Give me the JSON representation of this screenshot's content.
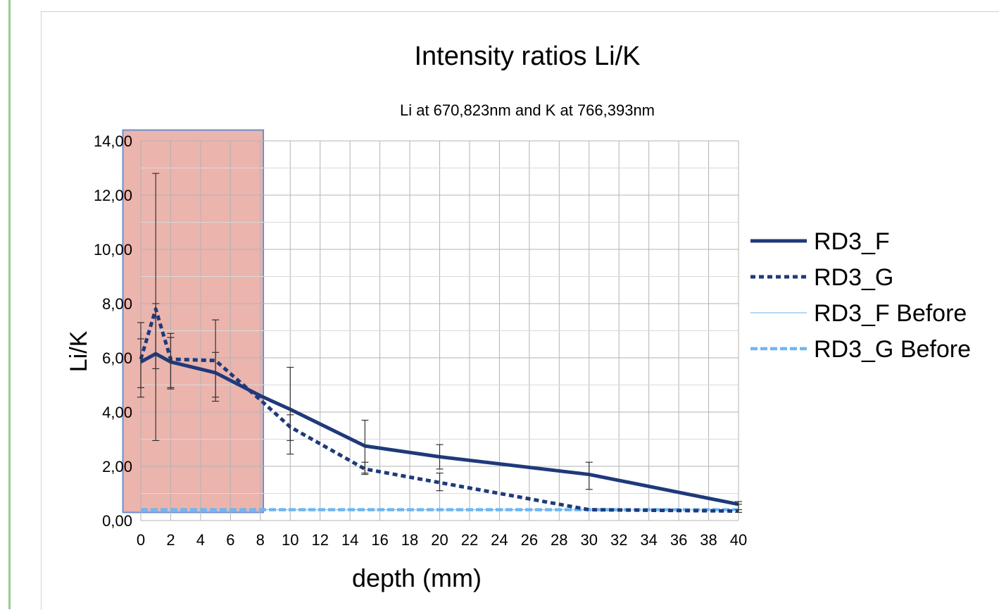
{
  "colors": {
    "accent_border": "#8fd08f",
    "rd3_f": "#1f3a7a",
    "rd3_g": "#1f3a7a",
    "rd3_f_before": "#9ec9f0",
    "rd3_g_before": "#6fb6f2",
    "highlight_fill": "#e8a79f",
    "highlight_border": "#6b8fd0",
    "grid": "#b3b3b3"
  },
  "chart_data": {
    "type": "line",
    "title": "Intensity ratios Li/K",
    "subtitle": "Li at 670,823nm and K at 766,393nm",
    "xlabel": "depth (mm)",
    "ylabel": "Li/K",
    "xlim": [
      0,
      40
    ],
    "ylim": [
      0,
      14
    ],
    "xticks": [
      0,
      2,
      4,
      6,
      8,
      10,
      12,
      14,
      16,
      18,
      20,
      22,
      24,
      26,
      28,
      30,
      32,
      34,
      36,
      38,
      40
    ],
    "yticks": [
      0,
      2,
      4,
      6,
      8,
      10,
      12,
      14
    ],
    "xtick_labels": [
      "0",
      "2",
      "4",
      "6",
      "8",
      "10",
      "12",
      "14",
      "16",
      "18",
      "20",
      "22",
      "24",
      "26",
      "28",
      "30",
      "32",
      "34",
      "36",
      "38",
      "40"
    ],
    "ytick_labels": [
      "0,00",
      "2,00",
      "4,00",
      "6,00",
      "8,00",
      "10,00",
      "12,00",
      "14,00"
    ],
    "grid": true,
    "legend_position": "right",
    "highlight_region": {
      "x": [
        -1.2,
        8.2
      ],
      "y": [
        0.3,
        14.4
      ]
    },
    "series": [
      {
        "name": "RD3_F",
        "style": "solid-thick",
        "x": [
          0,
          1,
          2,
          5,
          8,
          10,
          15,
          20,
          30,
          40
        ],
        "y": [
          5.85,
          6.15,
          5.85,
          5.45,
          4.6,
          4.1,
          2.75,
          2.35,
          1.7,
          0.6
        ],
        "err_low": [
          4.55,
          2.95,
          4.85,
          4.4,
          null,
          2.45,
          1.7,
          1.9,
          1.15,
          0.4
        ],
        "err_high": [
          7.3,
          12.8,
          6.9,
          7.4,
          null,
          5.65,
          3.7,
          2.8,
          2.15,
          0.7
        ]
      },
      {
        "name": "RD3_G",
        "style": "dotted-thick",
        "x": [
          0,
          1,
          2,
          5,
          8,
          10,
          15,
          20,
          30,
          40
        ],
        "y": [
          5.95,
          7.8,
          5.95,
          5.9,
          4.45,
          3.45,
          1.9,
          1.4,
          0.4,
          0.35
        ],
        "err_low": [
          4.9,
          5.6,
          4.9,
          4.55,
          null,
          2.95,
          1.75,
          1.1,
          null,
          0.3
        ],
        "err_high": [
          6.7,
          8.0,
          6.75,
          6.2,
          null,
          3.9,
          2.15,
          1.75,
          null,
          0.6
        ]
      },
      {
        "name": "RD3_F Before",
        "style": "solid-thin",
        "x": [
          0,
          40
        ],
        "y": [
          0.4,
          0.4
        ]
      },
      {
        "name": "RD3_G Before",
        "style": "dashed-light",
        "x": [
          0,
          40
        ],
        "y": [
          0.4,
          0.4
        ]
      }
    ]
  }
}
